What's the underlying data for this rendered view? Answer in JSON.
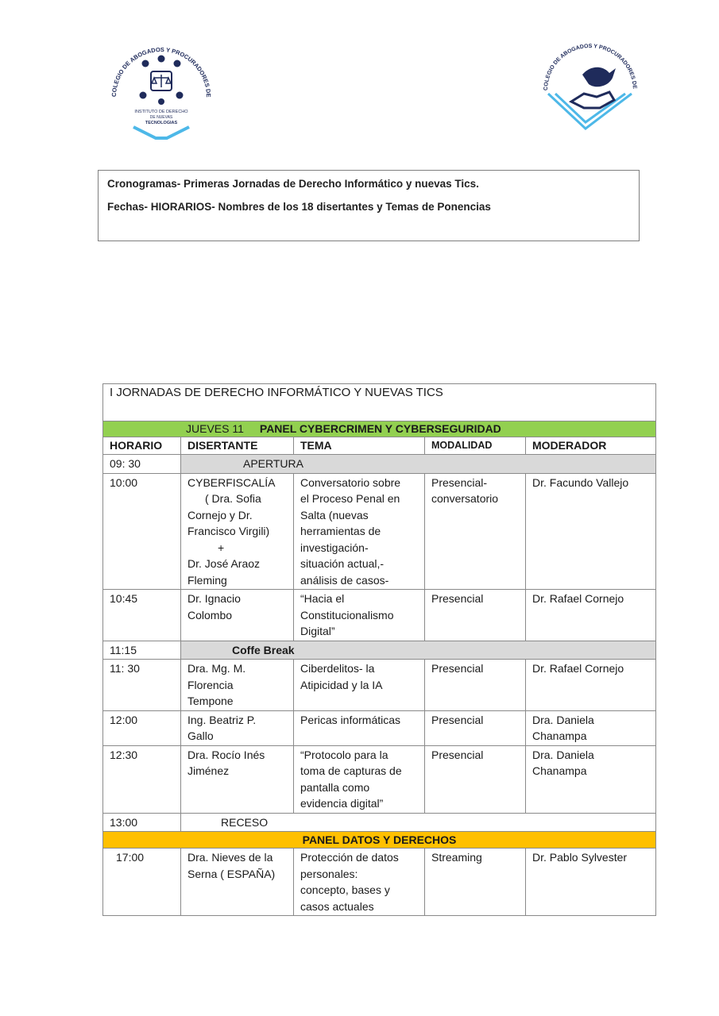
{
  "logos": {
    "left_text": "COLEGIO DE ABOGADOS Y PROCURADORES DE SALTA",
    "left_inner_text": [
      "INSTITUTO DE DERECHO",
      "DE NUEVAS",
      "TECNOLOGIAS"
    ],
    "right_text": "COLEGIO DE ABOGADOS Y PROCURADORES DE SALTA"
  },
  "header": {
    "line1": "Cronogramas- Primeras Jornadas de Derecho Informático y nuevas Tics.",
    "line2": "Fechas- HIORARIOS- Nombres de los 18 disertantes y Temas de Ponencias"
  },
  "table": {
    "title": "I JORNADAS DE DERECHO INFORMÁTICO Y NUEVAS TICS",
    "day": "JUEVES 11",
    "panel1": "PANEL CYBERCRIMEN Y CYBERSEGURIDAD",
    "columns": [
      "HORARIO",
      "DISERTANTE",
      "TEMA",
      "MODALIDAD",
      "MODERADOR"
    ],
    "apertura": {
      "time": "09: 30",
      "label": "APERTURA"
    },
    "row1000": {
      "time": "10:00",
      "speaker": [
        "CYBERFISCALÍA",
        "( Dra. Sofia",
        "Cornejo y Dr.",
        "Francisco Virgili)",
        "+",
        "Dr. José Araoz",
        "Fleming"
      ],
      "topic": [
        "Conversatorio sobre",
        "el Proceso Penal en",
        "Salta (nuevas",
        "herramientas de",
        "investigación-",
        "situación actual,-",
        "análisis de casos-"
      ],
      "mode": [
        "Presencial-",
        "conversatorio"
      ],
      "moderator": "Dr. Facundo Vallejo"
    },
    "row1045": {
      "time": "10:45",
      "speaker": [
        "Dr. Ignacio",
        "Colombo"
      ],
      "topic": [
        "“Hacia el",
        "Constitucionalismo",
        "Digital”"
      ],
      "mode": "Presencial",
      "moderator": "Dr. Rafael Cornejo"
    },
    "coffee": {
      "time": "11:15",
      "label": "Coffe Break"
    },
    "row1130": {
      "time": "11: 30",
      "speaker": [
        "Dra. Mg. M.",
        "Florencia",
        "Tempone"
      ],
      "topic": [
        "Ciberdelitos- la",
        "Atipicidad y la IA"
      ],
      "mode": "Presencial",
      "moderator": "Dr. Rafael Cornejo"
    },
    "row1200": {
      "time": "12:00",
      "speaker": [
        "Ing. Beatriz P.",
        "Gallo"
      ],
      "topic": [
        "Pericas informáticas"
      ],
      "mode": "Presencial",
      "moderator": [
        "Dra. Daniela",
        "Chanampa"
      ]
    },
    "row1230": {
      "time": "12:30",
      "speaker": [
        "Dra. Rocío Inés",
        "Jiménez"
      ],
      "topic": [
        "“Protocolo para la",
        "toma de capturas de",
        "pantalla como",
        "evidencia digital”"
      ],
      "mode": "Presencial",
      "moderator": [
        "Dra. Daniela",
        "Chanampa"
      ]
    },
    "receso": {
      "time": "13:00",
      "label": "RECESO"
    },
    "panel2": "PANEL DATOS Y DERECHOS",
    "row1700": {
      "time": "17:00",
      "speaker": [
        "Dra. Nieves de la",
        "Serna ( ESPAÑA)"
      ],
      "topic": [
        "Protección de datos",
        "personales:",
        "concepto, bases y",
        "casos actuales"
      ],
      "mode": "Streaming",
      "moderator": "Dr. Pablo Sylvester"
    }
  },
  "colors": {
    "green": "#92d050",
    "orange": "#ffc000",
    "gray": "#d9d9d9",
    "logo_blue": "#4db8e8"
  }
}
